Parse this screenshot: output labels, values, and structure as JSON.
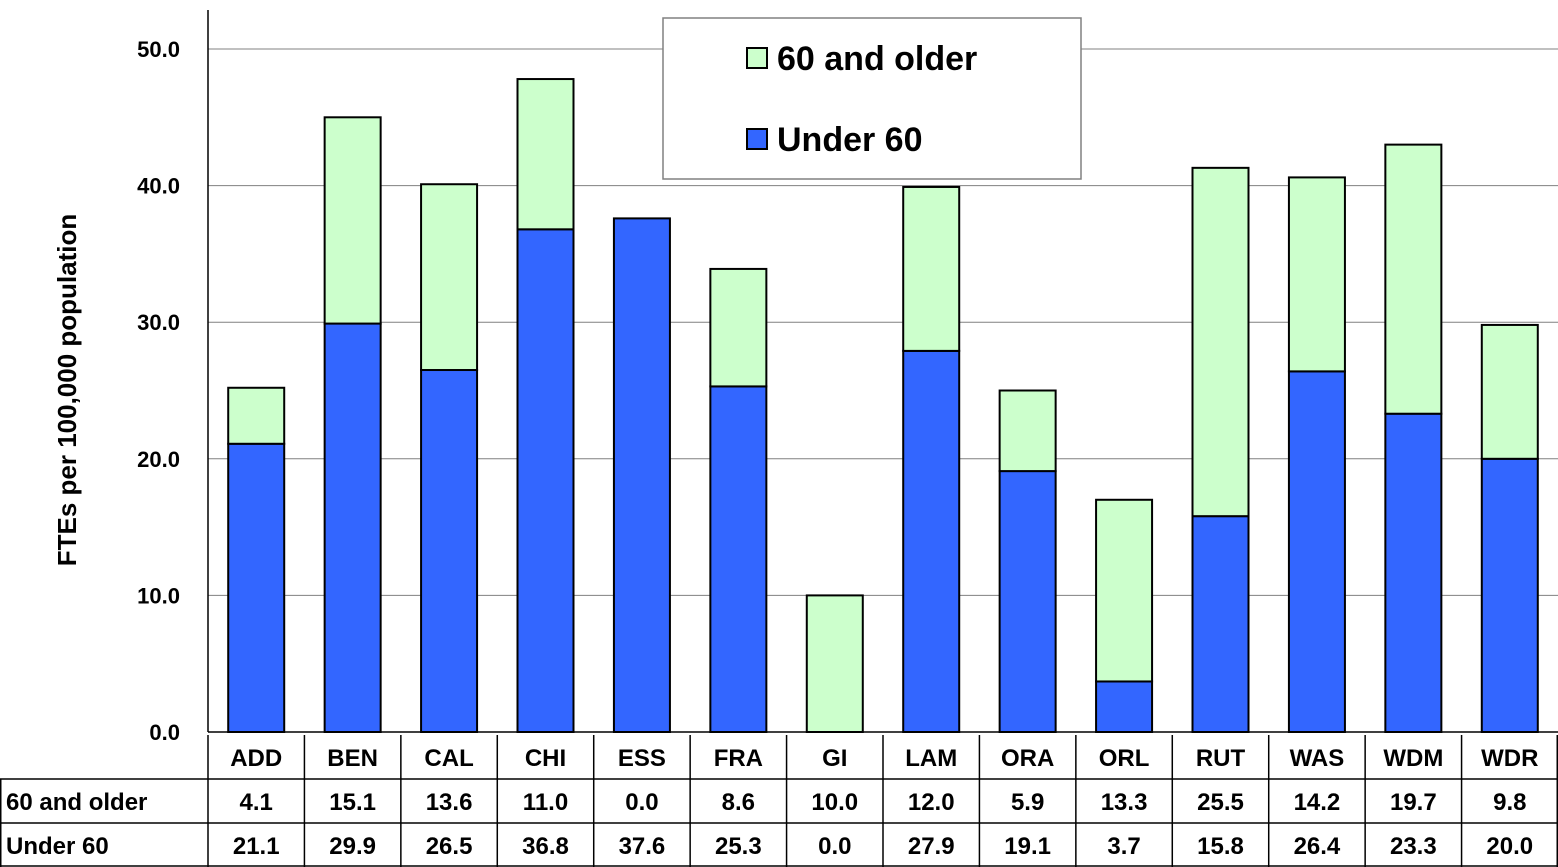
{
  "chart_data": {
    "type": "bar",
    "stacked": true,
    "categories": [
      "ADD",
      "BEN",
      "CAL",
      "CHI",
      "ESS",
      "FRA",
      "GI",
      "LAM",
      "ORA",
      "ORL",
      "RUT",
      "WAS",
      "WDM",
      "WDR"
    ],
    "series": [
      {
        "name": "Under 60",
        "color": "#3366ff",
        "values": [
          21.1,
          29.9,
          26.5,
          36.8,
          37.6,
          25.3,
          0.0,
          27.9,
          19.1,
          3.7,
          15.8,
          26.4,
          23.3,
          20.0
        ]
      },
      {
        "name": "60 and older",
        "color": "#ccffcc",
        "values": [
          4.1,
          15.1,
          13.6,
          11.0,
          0.0,
          8.6,
          10.0,
          12.0,
          5.9,
          13.3,
          25.5,
          14.2,
          19.7,
          9.8
        ]
      }
    ],
    "ylabel": "FTEs per 100,000 population",
    "ylim": [
      0,
      50
    ],
    "yticks": [
      "0.0",
      "10.0",
      "20.0",
      "30.0",
      "40.0",
      "50.0"
    ],
    "grid": true,
    "legend": {
      "placement": "top-center",
      "entries": [
        "60 and older",
        "Under 60"
      ]
    },
    "table": {
      "rows": [
        {
          "label": "60 and older",
          "cells": [
            "4.1",
            "15.1",
            "13.6",
            "11.0",
            "0.0",
            "8.6",
            "10.0",
            "12.0",
            "5.9",
            "13.3",
            "25.5",
            "14.2",
            "19.7",
            "9.8"
          ]
        },
        {
          "label": "Under 60",
          "cells": [
            "21.1",
            "29.9",
            "26.5",
            "36.8",
            "37.6",
            "25.3",
            "0.0",
            "27.9",
            "19.1",
            "3.7",
            "15.8",
            "26.4",
            "23.3",
            "20.0"
          ]
        }
      ]
    }
  }
}
